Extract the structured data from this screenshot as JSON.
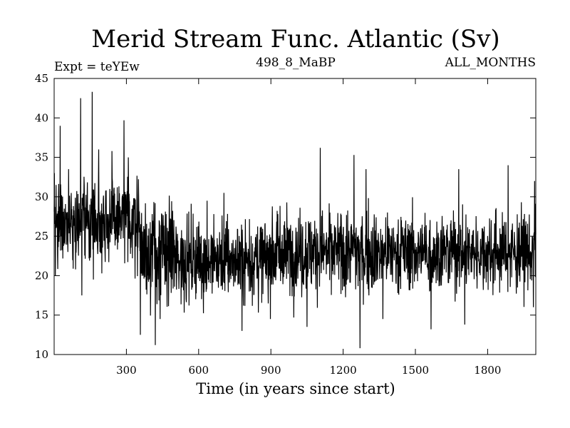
{
  "chart_data": {
    "type": "line",
    "title": "Merid Stream Func. Atlantic (Sv)",
    "subtitle_left": "Expt = teYEw",
    "subtitle_center": "498_8_MaBP",
    "subtitle_right": "ALL_MONTHS",
    "xlabel": "Time (in years since start)",
    "ylabel": "",
    "xlim": [
      0,
      2000
    ],
    "ylim": [
      10,
      45
    ],
    "xticks": [
      300,
      600,
      900,
      1200,
      1500,
      1800
    ],
    "yticks": [
      10,
      15,
      20,
      25,
      30,
      35,
      40,
      45
    ],
    "series": [
      {
        "name": "Merid Stream Func. Atlantic",
        "color": "#000000",
        "segments": [
          {
            "x_start": 0,
            "x_end": 360,
            "mean": 27.0,
            "spread": 2.6
          },
          {
            "x_start": 360,
            "x_end": 500,
            "mean": 23.0,
            "spread": 3.0
          },
          {
            "x_start": 500,
            "x_end": 900,
            "mean": 22.0,
            "spread": 2.6
          },
          {
            "x_start": 900,
            "x_end": 1400,
            "mean": 23.0,
            "spread": 2.6
          },
          {
            "x_start": 1400,
            "x_end": 2000,
            "mean": 23.0,
            "spread": 2.4
          }
        ],
        "peaks": [
          {
            "x": 8,
            "y": 31.5
          },
          {
            "x": 25,
            "y": 39.0
          },
          {
            "x": 60,
            "y": 33.5
          },
          {
            "x": 110,
            "y": 42.5
          },
          {
            "x": 158,
            "y": 43.3
          },
          {
            "x": 185,
            "y": 36.0
          },
          {
            "x": 240,
            "y": 35.8
          },
          {
            "x": 290,
            "y": 39.7
          },
          {
            "x": 308,
            "y": 35.0
          },
          {
            "x": 635,
            "y": 29.5
          },
          {
            "x": 705,
            "y": 30.5
          },
          {
            "x": 1105,
            "y": 36.2
          },
          {
            "x": 1245,
            "y": 35.3
          },
          {
            "x": 1295,
            "y": 33.5
          },
          {
            "x": 1680,
            "y": 33.5
          },
          {
            "x": 1885,
            "y": 34.0
          },
          {
            "x": 1995,
            "y": 32.0
          }
        ],
        "troughs": [
          {
            "x": 5,
            "y": 20.0
          },
          {
            "x": 115,
            "y": 17.5
          },
          {
            "x": 358,
            "y": 12.5
          },
          {
            "x": 420,
            "y": 11.2
          },
          {
            "x": 440,
            "y": 14.5
          },
          {
            "x": 780,
            "y": 13.0
          },
          {
            "x": 1050,
            "y": 13.5
          },
          {
            "x": 1270,
            "y": 10.8
          },
          {
            "x": 1365,
            "y": 14.5
          },
          {
            "x": 1565,
            "y": 13.2
          },
          {
            "x": 1705,
            "y": 13.8
          },
          {
            "x": 1990,
            "y": 16.0
          }
        ]
      }
    ]
  }
}
